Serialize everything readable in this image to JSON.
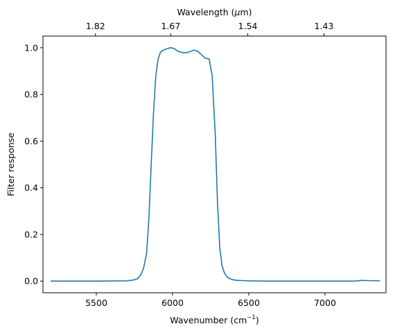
{
  "chart_data": {
    "type": "line",
    "title": "",
    "xlabel": {
      "base": "Wavenumber (cm",
      "sup": "−1",
      "tail": ")"
    },
    "ylabel": "Filter response",
    "top_axis_label": {
      "pre": "Wavelength (",
      "mu": "μ",
      "post": "m)"
    },
    "xlim": [
      5150,
      7400
    ],
    "ylim": [
      -0.05,
      1.05
    ],
    "x_ticks": [
      5500,
      6000,
      6500,
      7000
    ],
    "x_tick_labels": [
      "5500",
      "6000",
      "6500",
      "7000"
    ],
    "y_ticks": [
      0.0,
      0.2,
      0.4,
      0.6,
      0.8,
      1.0
    ],
    "y_tick_labels": [
      "0.0",
      "0.2",
      "0.4",
      "0.6",
      "0.8",
      "1.0"
    ],
    "top_ticks_wavenumber": [
      5494.5,
      5988.0,
      6493.5,
      6993.0
    ],
    "top_tick_labels": [
      "1.82",
      "1.67",
      "1.54",
      "1.43"
    ],
    "grid": false,
    "line_color": "#1f77b4",
    "series": [
      {
        "x": [
          5200,
          5500,
          5700,
          5740,
          5770,
          5790,
          5810,
          5830,
          5845,
          5860,
          5875,
          5890,
          5905,
          5920,
          5940,
          5960,
          5985,
          6010,
          6035,
          6060,
          6085,
          6110,
          6140,
          6165,
          6190,
          6215,
          6240,
          6260,
          6280,
          6295,
          6310,
          6325,
          6340,
          6355,
          6370,
          6390,
          6410,
          6430,
          6460,
          6500,
          6600,
          6800,
          7000,
          7200,
          7240,
          7280,
          7360
        ],
        "y": [
          0.0,
          0.0,
          0.001,
          0.004,
          0.01,
          0.025,
          0.055,
          0.12,
          0.27,
          0.5,
          0.72,
          0.88,
          0.95,
          0.98,
          0.99,
          0.995,
          1.0,
          0.997,
          0.985,
          0.98,
          0.978,
          0.982,
          0.99,
          0.985,
          0.97,
          0.955,
          0.952,
          0.88,
          0.63,
          0.33,
          0.14,
          0.065,
          0.035,
          0.02,
          0.012,
          0.007,
          0.004,
          0.003,
          0.002,
          0.001,
          0.0,
          0.0,
          0.0,
          0.0,
          0.003,
          0.002,
          0.001
        ]
      }
    ]
  }
}
